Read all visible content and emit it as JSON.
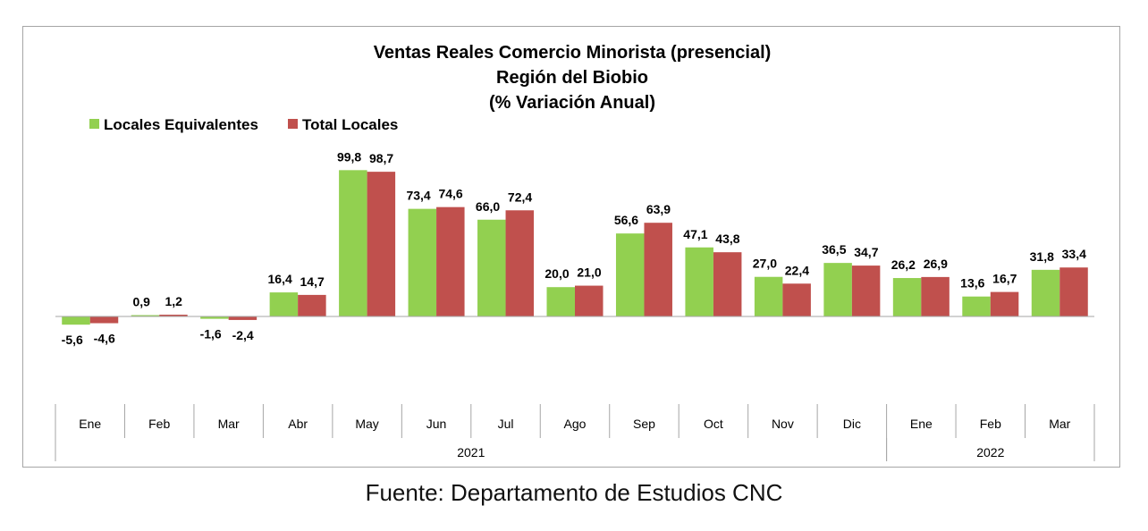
{
  "chart_data": {
    "type": "bar",
    "title": [
      "Ventas Reales Comercio Minorista (presencial)",
      "Región del Biobio",
      "(% Variación Anual)"
    ],
    "categories": [
      "Ene",
      "Feb",
      "Mar",
      "Abr",
      "May",
      "Jun",
      "Jul",
      "Ago",
      "Sep",
      "Oct",
      "Nov",
      "Dic",
      "Ene",
      "Feb",
      "Mar"
    ],
    "year_groups": [
      {
        "label": "2021",
        "count": 12
      },
      {
        "label": "2022",
        "count": 3
      }
    ],
    "series": [
      {
        "name": "Locales Equivalentes",
        "color": "#92d050",
        "values": [
          -5.6,
          0.9,
          -1.6,
          16.4,
          99.8,
          73.4,
          66.0,
          20.0,
          56.6,
          47.1,
          27.0,
          36.5,
          26.2,
          13.6,
          31.8
        ],
        "labels": [
          "-5,6",
          "0,9",
          "-1,6",
          "16,4",
          "99,8",
          "73,4",
          "66,0",
          "20,0",
          "56,6",
          "47,1",
          "27,0",
          "36,5",
          "26,2",
          "13,6",
          "31,8"
        ]
      },
      {
        "name": "Total Locales",
        "color": "#c0504d",
        "values": [
          -4.6,
          1.2,
          -2.4,
          14.7,
          98.7,
          74.6,
          72.4,
          21.0,
          63.9,
          43.8,
          22.4,
          34.7,
          26.9,
          16.7,
          33.4
        ],
        "labels": [
          "-4,6",
          "1,2",
          "-2,4",
          "14,7",
          "98,7",
          "74,6",
          "72,4",
          "21,0",
          "63,9",
          "43,8",
          "22,4",
          "34,7",
          "26,9",
          "16,7",
          "33,4"
        ]
      }
    ],
    "legend_position": "top-left",
    "grid": false
  },
  "source": "Fuente: Departamento de Estudios CNC"
}
